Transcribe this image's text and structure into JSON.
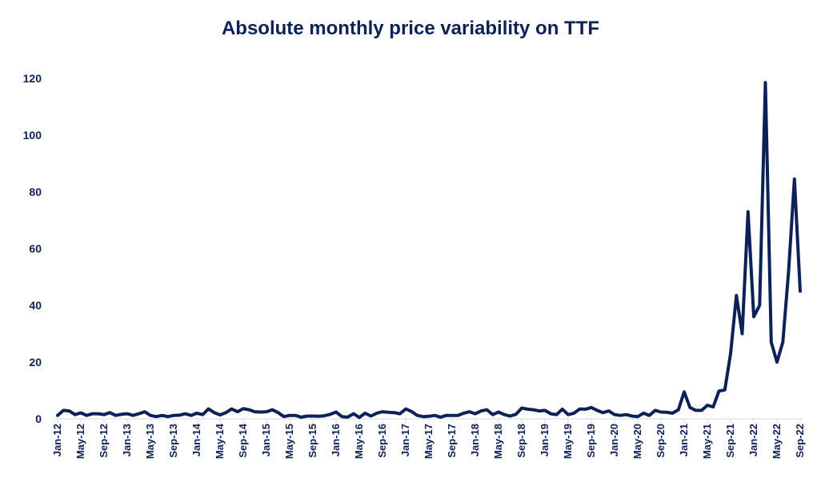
{
  "chart_data": {
    "type": "line",
    "title": "Absolute monthly price variability on TTF",
    "xlabel": "",
    "ylabel": "",
    "ylim": [
      0,
      120
    ],
    "yticks": [
      0,
      20,
      40,
      60,
      80,
      100,
      120
    ],
    "grid": false,
    "legend": "none",
    "color": "#0b2157",
    "xtick_labels": [
      "Jan-12",
      "May-12",
      "Sep-12",
      "Jan-13",
      "May-13",
      "Sep-13",
      "Jan-14",
      "May-14",
      "Sep-14",
      "Jan-15",
      "May-15",
      "Sep-15",
      "Jan-16",
      "May-16",
      "Sep-16",
      "Jan-17",
      "May-17",
      "Sep-17",
      "Jan-18",
      "May-18",
      "Sep-18",
      "Jan-19",
      "May-19",
      "Sep-19",
      "Jan-20",
      "May-20",
      "Sep-20",
      "Jan-21",
      "May-21",
      "Sep-21",
      "Jan-22",
      "May-22",
      "Sep-22"
    ],
    "series": [
      {
        "name": "Absolute monthly price variability",
        "start": "Jan-12",
        "frequency": "monthly",
        "values": [
          1.2,
          3.0,
          2.8,
          1.5,
          2.1,
          1.2,
          1.8,
          1.8,
          1.5,
          2.2,
          1.2,
          1.6,
          1.8,
          1.2,
          1.8,
          2.5,
          1.2,
          0.8,
          1.2,
          0.8,
          1.2,
          1.3,
          1.8,
          1.2,
          2.0,
          1.5,
          3.5,
          2.2,
          1.4,
          2.2,
          3.5,
          2.5,
          3.6,
          3.2,
          2.5,
          2.4,
          2.5,
          3.2,
          2.2,
          0.8,
          1.2,
          1.2,
          0.6,
          1.0,
          1.0,
          0.9,
          1.1,
          1.6,
          2.4,
          0.8,
          0.6,
          1.8,
          0.5,
          2.0,
          1.0,
          2.0,
          2.5,
          2.3,
          2.2,
          1.8,
          3.5,
          2.6,
          1.2,
          0.8,
          0.9,
          1.2,
          0.6,
          1.2,
          1.2,
          1.2,
          2.0,
          2.5,
          1.8,
          2.8,
          3.2,
          1.5,
          2.4,
          1.5,
          1.0,
          1.6,
          3.8,
          3.4,
          3.2,
          2.8,
          3.0,
          1.8,
          1.5,
          3.4,
          1.5,
          2.0,
          3.5,
          3.4,
          4.0,
          3.0,
          2.2,
          2.8,
          1.5,
          1.2,
          1.5,
          1.0,
          0.8,
          2.0,
          1.2,
          3.0,
          2.4,
          2.3,
          2.0,
          3.2,
          9.5,
          4.0,
          3.0,
          3.0,
          4.8,
          4.2,
          9.8,
          10.2,
          23.0,
          43.5,
          30.0,
          73.0,
          36.0,
          40.0,
          118.5,
          27.0,
          20.0,
          27.0,
          52.0,
          84.5,
          45.0
        ]
      }
    ]
  }
}
